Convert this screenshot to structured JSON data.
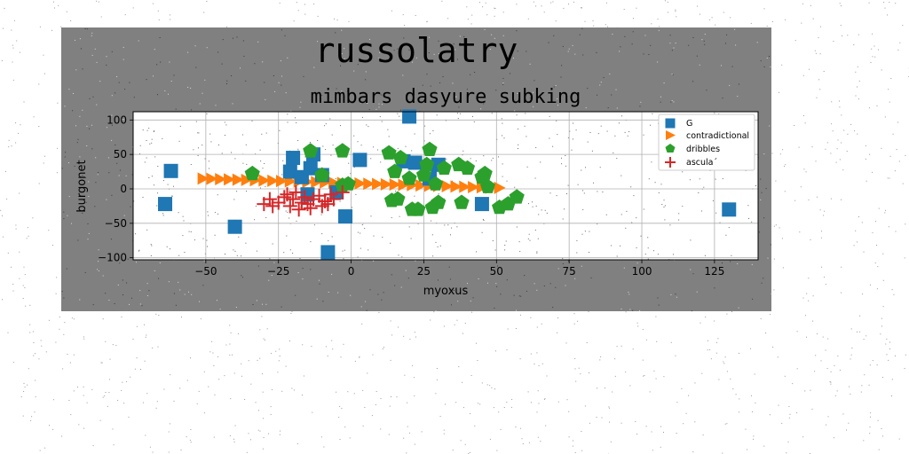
{
  "page": {
    "title": "russolatry"
  },
  "chart_data": {
    "type": "scatter",
    "title": "mimbars dasyure subking",
    "xlabel": "myoxus",
    "ylabel": "burgonet",
    "xlim": [
      -75,
      140
    ],
    "ylim": [
      -103,
      112
    ],
    "xticks": [
      -50,
      -25,
      0,
      25,
      50,
      75,
      100,
      125
    ],
    "yticks": [
      -100,
      -50,
      0,
      50,
      100
    ],
    "xtick_labels": [
      "−50",
      "−25",
      "0",
      "25",
      "50",
      "75",
      "100",
      "125"
    ],
    "ytick_labels": [
      "−100",
      "−50",
      "0",
      "50",
      "100"
    ],
    "grid": true,
    "legend_position": "top-right",
    "series": [
      {
        "name": "G",
        "marker": "square",
        "color": "#1f77b4",
        "points": [
          [
            -64,
            -22
          ],
          [
            -62,
            26
          ],
          [
            -40,
            -55
          ],
          [
            -21,
            25
          ],
          [
            -20,
            45
          ],
          [
            -17,
            17
          ],
          [
            -15,
            -8
          ],
          [
            -14,
            30
          ],
          [
            -13,
            50
          ],
          [
            -10,
            20
          ],
          [
            -8,
            -92
          ],
          [
            -5,
            -5
          ],
          [
            -2,
            -40
          ],
          [
            3,
            42
          ],
          [
            20,
            105
          ],
          [
            18,
            40
          ],
          [
            22,
            38
          ],
          [
            27,
            15
          ],
          [
            30,
            35
          ],
          [
            45,
            -22
          ],
          [
            130,
            -30
          ]
        ]
      },
      {
        "name": "contradictional",
        "marker": "triangle-right",
        "color": "#ff7f0e",
        "points": [
          [
            -51,
            15
          ],
          [
            -48,
            14.6
          ],
          [
            -45,
            14.2
          ],
          [
            -42,
            13.8
          ],
          [
            -39,
            13.4
          ],
          [
            -36,
            13
          ],
          [
            -33,
            12.6
          ],
          [
            -30,
            12.2
          ],
          [
            -27,
            11.8
          ],
          [
            -24,
            11.4
          ],
          [
            -21,
            11
          ],
          [
            -18,
            10.6
          ],
          [
            -15,
            10.2
          ],
          [
            -12,
            9.8
          ],
          [
            -9,
            9.4
          ],
          [
            -6,
            9
          ],
          [
            -3,
            8.6
          ],
          [
            0,
            8.2
          ],
          [
            3,
            7.8
          ],
          [
            6,
            7.4
          ],
          [
            9,
            7
          ],
          [
            12,
            6.6
          ],
          [
            15,
            6.2
          ],
          [
            18,
            5.8
          ],
          [
            21,
            5.4
          ],
          [
            24,
            5
          ],
          [
            27,
            4.6
          ],
          [
            30,
            4.2
          ],
          [
            33,
            3.8
          ],
          [
            36,
            3.4
          ],
          [
            39,
            3
          ],
          [
            42,
            2.6
          ],
          [
            45,
            2.2
          ],
          [
            48,
            1.8
          ],
          [
            51,
            1.4
          ]
        ]
      },
      {
        "name": "dribbles",
        "marker": "pentagon",
        "color": "#2ca02c",
        "points": [
          [
            -34,
            22
          ],
          [
            -14,
            55
          ],
          [
            -10,
            20
          ],
          [
            -3,
            55
          ],
          [
            -3,
            5
          ],
          [
            -1,
            7
          ],
          [
            13,
            52
          ],
          [
            15,
            25
          ],
          [
            17,
            45
          ],
          [
            20,
            15
          ],
          [
            14,
            -17
          ],
          [
            16,
            -15
          ],
          [
            21,
            -30
          ],
          [
            23,
            -30
          ],
          [
            25,
            20
          ],
          [
            26,
            35
          ],
          [
            27,
            57
          ],
          [
            28,
            -27
          ],
          [
            29,
            7
          ],
          [
            30,
            -20
          ],
          [
            32,
            30
          ],
          [
            37,
            35
          ],
          [
            38,
            -20
          ],
          [
            40,
            30
          ],
          [
            45,
            17
          ],
          [
            46,
            22
          ],
          [
            47,
            3
          ],
          [
            51,
            -27
          ],
          [
            54,
            -22
          ],
          [
            57,
            -12
          ]
        ]
      },
      {
        "name": "ascula´",
        "marker": "plus",
        "color": "#d62728",
        "points": [
          [
            -30,
            -22
          ],
          [
            -28,
            -15
          ],
          [
            -27,
            -25
          ],
          [
            -25,
            -20
          ],
          [
            -23,
            -12
          ],
          [
            -22,
            -8
          ],
          [
            -21,
            -25
          ],
          [
            -20,
            -15
          ],
          [
            -19,
            -5
          ],
          [
            -18,
            -30
          ],
          [
            -17,
            -20
          ],
          [
            -16,
            -12
          ],
          [
            -15,
            -22
          ],
          [
            -14,
            -28
          ],
          [
            -13,
            -15
          ],
          [
            -11,
            -10
          ],
          [
            -10,
            -25
          ],
          [
            -9,
            -18
          ],
          [
            -8,
            -22
          ],
          [
            -7,
            -8
          ],
          [
            -6,
            -15
          ],
          [
            -3,
            -5
          ]
        ]
      }
    ]
  }
}
